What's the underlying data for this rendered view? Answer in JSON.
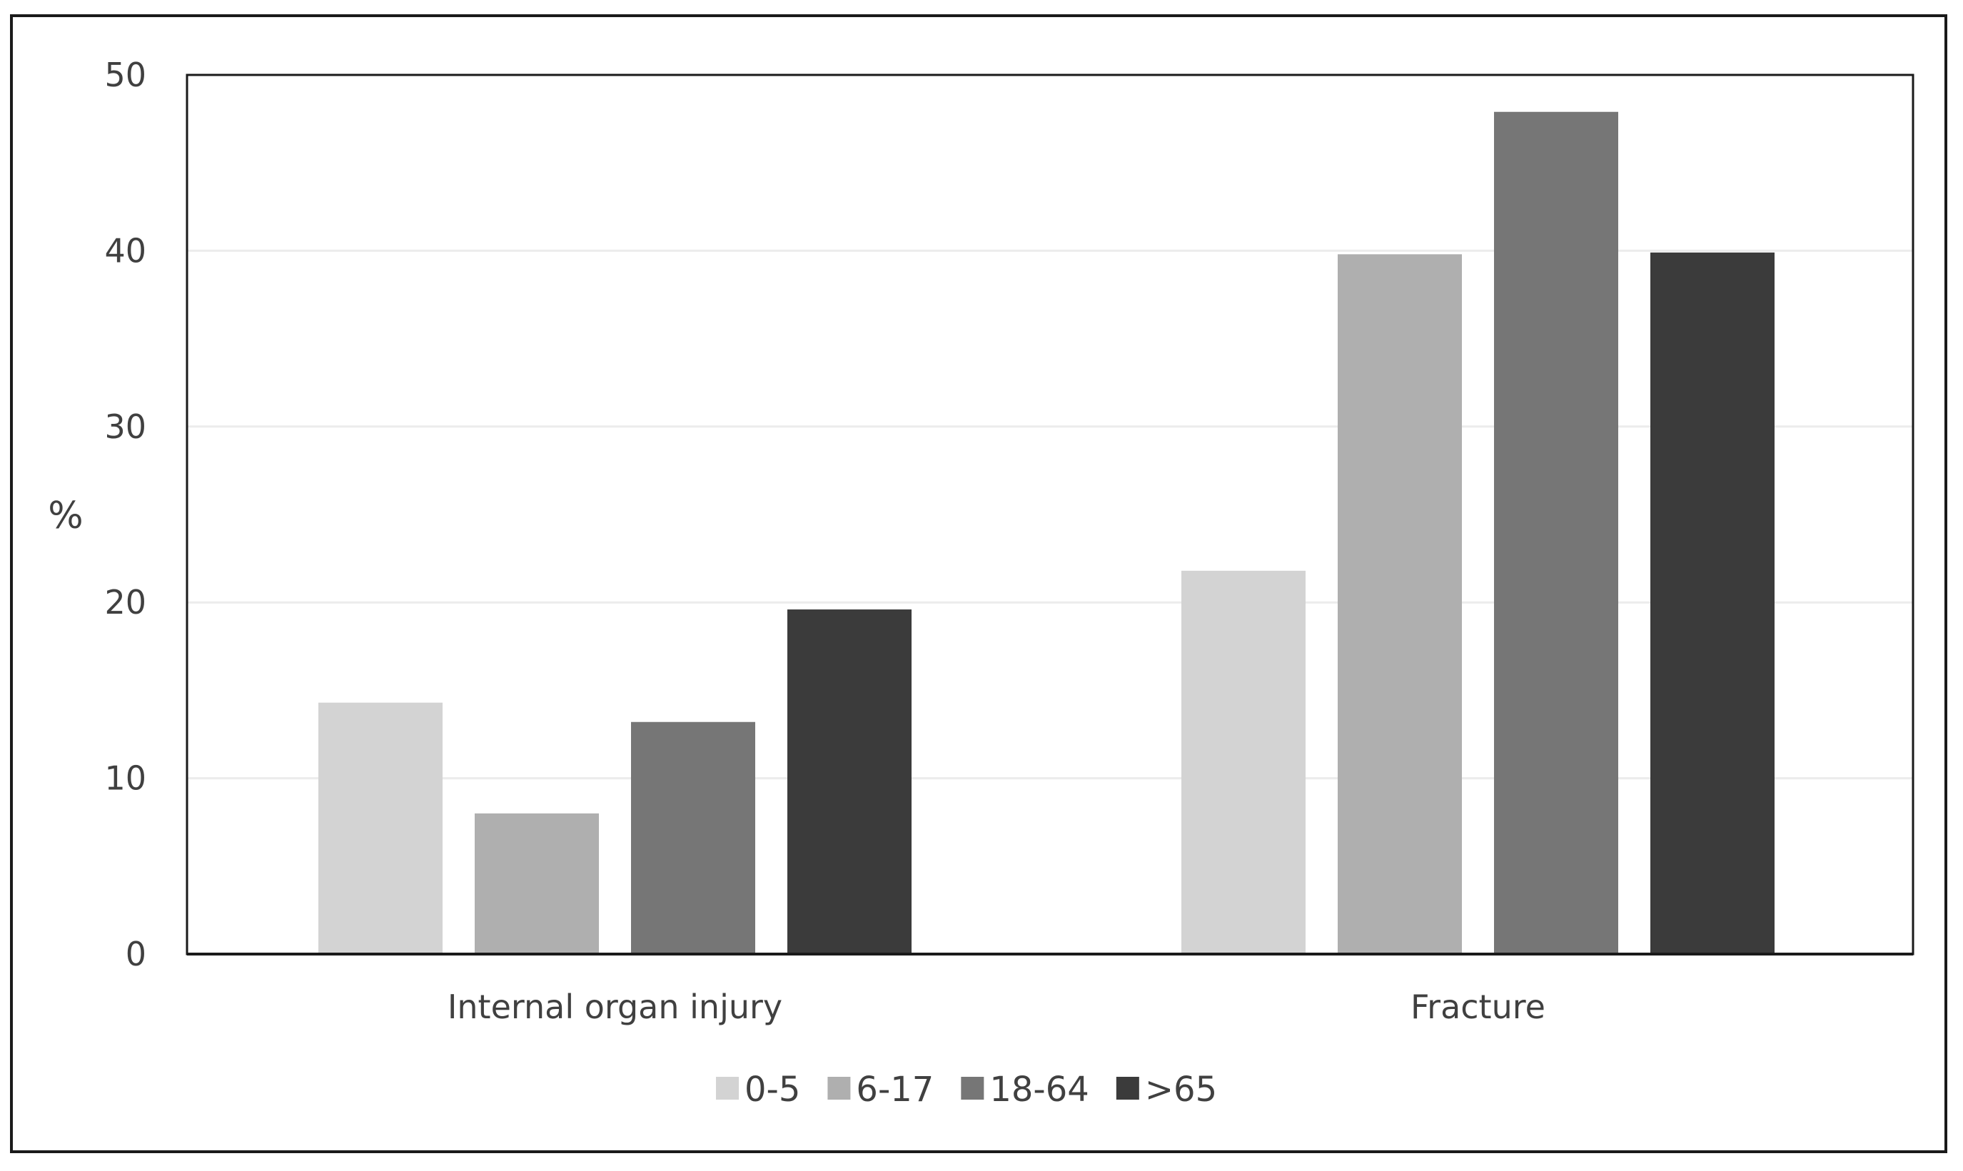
{
  "chart_data": {
    "type": "bar",
    "title": "",
    "xlabel": "",
    "ylabel": "%",
    "ylim": [
      0,
      50
    ],
    "yticks": [
      0,
      10,
      20,
      30,
      40,
      50
    ],
    "grid": true,
    "legend_position": "bottom",
    "categories": [
      "Internal organ injury",
      "Fracture"
    ],
    "series": [
      {
        "name": "0-5",
        "color": "#d3d3d3",
        "values": [
          14.3,
          21.8
        ]
      },
      {
        "name": "6-17",
        "color": "#afafaf",
        "values": [
          8.0,
          39.8
        ]
      },
      {
        "name": "18-64",
        "color": "#767676",
        "values": [
          13.2,
          47.9
        ]
      },
      {
        "name": ">65",
        "color": "#3b3b3b",
        "values": [
          19.6,
          39.9
        ]
      }
    ]
  }
}
